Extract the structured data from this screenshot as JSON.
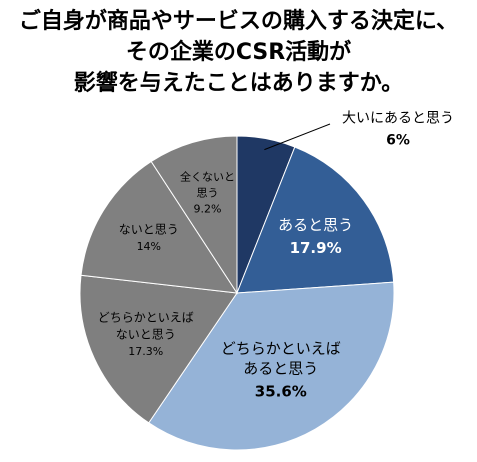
{
  "chart_data": {
    "type": "pie",
    "title_lines": [
      "ご自身が商品やサービスの購入する決定に、",
      "その企業のCSR活動が",
      "影響を与えたことはありますか。"
    ],
    "start": "12 o'clock",
    "direction": "clockwise",
    "slices": [
      {
        "label_lines": [
          "大いにあると思う"
        ],
        "value": 6,
        "value_text": "6%",
        "color": "#1f3864",
        "label_color": "#000000",
        "label_placement": "outside-with-leader"
      },
      {
        "label_lines": [
          "あると思う"
        ],
        "value": 17.9,
        "value_text": "17.9%",
        "color": "#335e96",
        "label_color": "#ffffff",
        "label_placement": "inside"
      },
      {
        "label_lines": [
          "どちらかといえば",
          "あると思う"
        ],
        "value": 35.6,
        "value_text": "35.6%",
        "color": "#95b3d7",
        "label_color": "#000000",
        "label_placement": "inside"
      },
      {
        "label_lines": [
          "どちらかといえば",
          "ないと思う"
        ],
        "value": 17.3,
        "value_text": "17.3%",
        "color": "#7f7f7f",
        "label_color": "#000000",
        "label_placement": "inside"
      },
      {
        "label_lines": [
          "ないと思う"
        ],
        "value": 14,
        "value_text": "14%",
        "color": "#808080",
        "label_color": "#000000",
        "label_placement": "inside"
      },
      {
        "label_lines": [
          "全くないと",
          "思う"
        ],
        "value": 9.2,
        "value_text": "9.2%",
        "color": "#808080",
        "label_color": "#000000",
        "label_placement": "inside"
      }
    ]
  }
}
